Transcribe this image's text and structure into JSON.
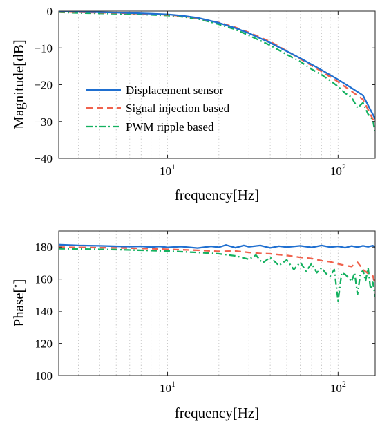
{
  "chart_data": [
    {
      "type": "line",
      "x_scale": "log",
      "xlim": [
        2.3,
        165
      ],
      "ylim": [
        -40,
        0
      ],
      "xlabel": "frequency[Hz]",
      "ylabel": "Magnitude[dB]",
      "grid": "vertical-log-dotted",
      "xticks": [
        {
          "value": 10,
          "base": "10",
          "exp": "1"
        },
        {
          "value": 100,
          "base": "10",
          "exp": "2"
        }
      ],
      "yticks": [
        0,
        -10,
        -20,
        -30,
        -40
      ],
      "legend": "center-left",
      "series": [
        {
          "name": "Displacement sensor",
          "color": "#1f6fd0",
          "style": "solid",
          "x": [
            2.3,
            3,
            5,
            8,
            10,
            12,
            15,
            20,
            25,
            30,
            40,
            50,
            60,
            70,
            80,
            100,
            120,
            140,
            165
          ],
          "y": [
            -0.1,
            -0.2,
            -0.4,
            -0.7,
            -0.9,
            -1.2,
            -1.8,
            -3.2,
            -4.6,
            -6.0,
            -8.6,
            -10.9,
            -12.8,
            -14.5,
            -16.0,
            -18.6,
            -20.9,
            -22.9,
            -29.3
          ]
        },
        {
          "name": "Signal injection based",
          "color": "#f0624d",
          "style": "dashed",
          "x": [
            2.3,
            3,
            5,
            8,
            10,
            12,
            15,
            20,
            25,
            30,
            40,
            50,
            60,
            70,
            80,
            100,
            120,
            140,
            165
          ],
          "y": [
            -0.2,
            -0.3,
            -0.5,
            -0.8,
            -1.0,
            -1.3,
            -1.9,
            -3.1,
            -4.4,
            -5.8,
            -8.3,
            -10.8,
            -13.0,
            -14.8,
            -16.4,
            -19.2,
            -21.8,
            -24.0,
            -30.6
          ]
        },
        {
          "name": "PWM ripple based",
          "color": "#14b160",
          "style": "dashdot",
          "x": [
            2.3,
            3,
            5,
            8,
            10,
            12,
            15,
            18,
            20,
            25,
            30,
            40,
            50,
            60,
            70,
            80,
            90,
            100,
            110,
            120,
            130,
            140,
            150,
            160,
            165
          ],
          "y": [
            -0.3,
            -0.5,
            -0.7,
            -1.0,
            -1.2,
            -1.5,
            -2.1,
            -3.0,
            -3.6,
            -5.0,
            -6.6,
            -9.3,
            -11.8,
            -13.7,
            -15.8,
            -17.3,
            -18.9,
            -20.5,
            -22.3,
            -23.4,
            -26.3,
            -24.9,
            -28.0,
            -29.5,
            -33.3
          ]
        }
      ]
    },
    {
      "type": "line",
      "x_scale": "log",
      "xlim": [
        2.3,
        165
      ],
      "ylim": [
        100,
        190
      ],
      "xlabel": "frequency[Hz]",
      "ylabel": "Phase[°]",
      "ylabel_main": "Phase[",
      "ylabel_sup": "∘",
      "ylabel_end": "]",
      "grid": "vertical-log-dotted",
      "xticks": [
        {
          "value": 10,
          "base": "10",
          "exp": "1"
        },
        {
          "value": 100,
          "base": "10",
          "exp": "2"
        }
      ],
      "yticks": [
        100,
        120,
        140,
        160,
        180
      ],
      "series": [
        {
          "name": "Displacement sensor",
          "color": "#1f6fd0",
          "style": "solid",
          "x": [
            2.3,
            3,
            4,
            5,
            6,
            7,
            8,
            9,
            10,
            12,
            15,
            18,
            20,
            22,
            25,
            28,
            30,
            35,
            40,
            45,
            50,
            60,
            70,
            80,
            90,
            100,
            110,
            120,
            130,
            140,
            150,
            160,
            165
          ],
          "y": [
            181.5,
            181.0,
            180.8,
            180.5,
            180.3,
            180.5,
            180.0,
            180.4,
            179.8,
            180.3,
            179.4,
            180.5,
            179.9,
            181.3,
            179.6,
            181.0,
            180.2,
            181.0,
            179.5,
            180.6,
            180.0,
            180.8,
            179.8,
            181.0,
            180.0,
            180.5,
            179.6,
            180.7,
            180.0,
            180.8,
            180.2,
            180.9,
            179.8
          ]
        },
        {
          "name": "Signal injection based",
          "color": "#f0624d",
          "style": "dashed",
          "x": [
            2.3,
            3,
            5,
            8,
            10,
            15,
            20,
            25,
            30,
            35,
            40,
            50,
            60,
            70,
            80,
            90,
            100,
            110,
            120,
            130,
            140,
            150,
            160,
            165
          ],
          "y": [
            180.0,
            179.8,
            179.5,
            179.0,
            178.6,
            178.0,
            177.3,
            177.5,
            176.6,
            176.0,
            175.8,
            174.8,
            173.6,
            172.9,
            171.5,
            170.8,
            169.5,
            168.5,
            167.9,
            170.5,
            166.0,
            163.5,
            162.0,
            156.5
          ]
        },
        {
          "name": "PWM ripple based",
          "color": "#14b160",
          "style": "dashdot",
          "x": [
            2.3,
            3,
            5,
            8,
            10,
            15,
            20,
            25,
            30,
            33,
            36,
            40,
            45,
            50,
            55,
            60,
            65,
            70,
            75,
            80,
            85,
            90,
            95,
            100,
            105,
            110,
            115,
            120,
            125,
            130,
            135,
            140,
            145,
            150,
            155,
            160,
            165
          ],
          "y": [
            179.0,
            178.8,
            178.4,
            177.8,
            177.5,
            176.6,
            175.8,
            174.5,
            172.4,
            175.0,
            170.0,
            173.5,
            168.5,
            172.0,
            166.0,
            170.5,
            165.0,
            169.8,
            164.0,
            167.0,
            163.5,
            162.0,
            166.0,
            146.5,
            164.0,
            163.0,
            161.0,
            158.5,
            164.0,
            150.5,
            163.0,
            165.5,
            159.0,
            167.0,
            154.0,
            158.0,
            149.0
          ]
        }
      ]
    }
  ]
}
